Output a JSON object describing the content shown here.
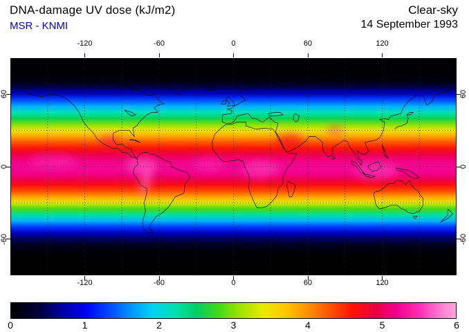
{
  "header": {
    "title": "DNA-damage UV dose (kJ/m2)",
    "source": "MSR - KNMI",
    "condition": "Clear-sky",
    "date": "14 September 1993"
  },
  "map": {
    "lon_range": [
      -180,
      180
    ],
    "lat_range": [
      -90,
      90
    ],
    "grid_step_deg": 30,
    "lon_tick_labels": [
      "-120",
      "-60",
      "0",
      "60",
      "120"
    ],
    "lon_tick_values": [
      -120,
      -60,
      0,
      60,
      120
    ],
    "lat_tick_labels": [
      "60",
      "0",
      "-60"
    ],
    "lat_tick_values": [
      60,
      0,
      -60
    ],
    "zonal_profile": [
      [
        90,
        0
      ],
      [
        78,
        0.02
      ],
      [
        70,
        0.15
      ],
      [
        65,
        0.45
      ],
      [
        60,
        0.9
      ],
      [
        55,
        1.35
      ],
      [
        50,
        1.75
      ],
      [
        45,
        2.15
      ],
      [
        40,
        2.55
      ],
      [
        35,
        3.0
      ],
      [
        30,
        3.45
      ],
      [
        25,
        3.9
      ],
      [
        20,
        4.3
      ],
      [
        15,
        4.65
      ],
      [
        10,
        4.95
      ],
      [
        5,
        5.15
      ],
      [
        0,
        5.25
      ],
      [
        -5,
        5.2
      ],
      [
        -10,
        5.0
      ],
      [
        -15,
        4.7
      ],
      [
        -20,
        4.35
      ],
      [
        -25,
        3.9
      ],
      [
        -30,
        3.35
      ],
      [
        -35,
        2.8
      ],
      [
        -40,
        2.25
      ],
      [
        -45,
        1.75
      ],
      [
        -50,
        1.25
      ],
      [
        -55,
        0.8
      ],
      [
        -60,
        0.45
      ],
      [
        -65,
        0.2
      ],
      [
        -70,
        0.06
      ],
      [
        -78,
        0
      ],
      [
        -90,
        0
      ]
    ],
    "hotspots": [
      {
        "lon": -74,
        "lat": 1,
        "rx_deg": 13,
        "ry_deg": 7,
        "rot": 0,
        "value": 5.7
      },
      {
        "lon": -71,
        "lat": -13,
        "rx_deg": 4,
        "ry_deg": 12,
        "rot": 12,
        "value": 5.8
      },
      {
        "lon": -100,
        "lat": 21,
        "rx_deg": 7,
        "ry_deg": 4,
        "rot": 0,
        "value": 5.1
      },
      {
        "lon": -20,
        "lat": 2,
        "rx_deg": 12,
        "ry_deg": 6,
        "rot": 0,
        "value": 5.5
      },
      {
        "lon": 22,
        "lat": -2,
        "rx_deg": 15,
        "ry_deg": 7,
        "rot": 0,
        "value": 5.6
      },
      {
        "lon": 45,
        "lat": 21,
        "rx_deg": 11,
        "ry_deg": 6,
        "rot": 0,
        "value": 4.8
      },
      {
        "lon": 82,
        "lat": 30,
        "rx_deg": 6,
        "ry_deg": 3,
        "rot": 0,
        "value": 5.3
      },
      {
        "lon": 115,
        "lat": -3,
        "rx_deg": 18,
        "ry_deg": 7,
        "rot": 0,
        "value": 5.6
      },
      {
        "lon": -145,
        "lat": 4,
        "rx_deg": 20,
        "ry_deg": 6,
        "rot": 0,
        "value": 5.5
      }
    ]
  },
  "colorbar": {
    "min": 0,
    "max": 6,
    "tick_labels": [
      "0",
      "1",
      "2",
      "3",
      "4",
      "5",
      "6"
    ],
    "stops": [
      [
        0.0,
        "#000000"
      ],
      [
        0.35,
        "#000034"
      ],
      [
        0.7,
        "#0000a8"
      ],
      [
        1.0,
        "#0000f0"
      ],
      [
        1.3,
        "#0043ff"
      ],
      [
        1.6,
        "#0092ff"
      ],
      [
        1.9,
        "#00d2f2"
      ],
      [
        2.2,
        "#00e2b0"
      ],
      [
        2.5,
        "#00d060"
      ],
      [
        2.8,
        "#44da18"
      ],
      [
        3.1,
        "#a2e400"
      ],
      [
        3.4,
        "#eaea00"
      ],
      [
        3.7,
        "#ffc800"
      ],
      [
        4.0,
        "#ff9000"
      ],
      [
        4.3,
        "#ff5200"
      ],
      [
        4.6,
        "#ff1400"
      ],
      [
        4.9,
        "#ea0040"
      ],
      [
        5.2,
        "#f2008c"
      ],
      [
        5.5,
        "#ff2cb4"
      ],
      [
        5.8,
        "#ff7ed2"
      ],
      [
        6.0,
        "#ffaade"
      ]
    ]
  },
  "colors": {
    "source_text": "#0000cc",
    "ink": "#000000",
    "background": "#ffffff"
  }
}
